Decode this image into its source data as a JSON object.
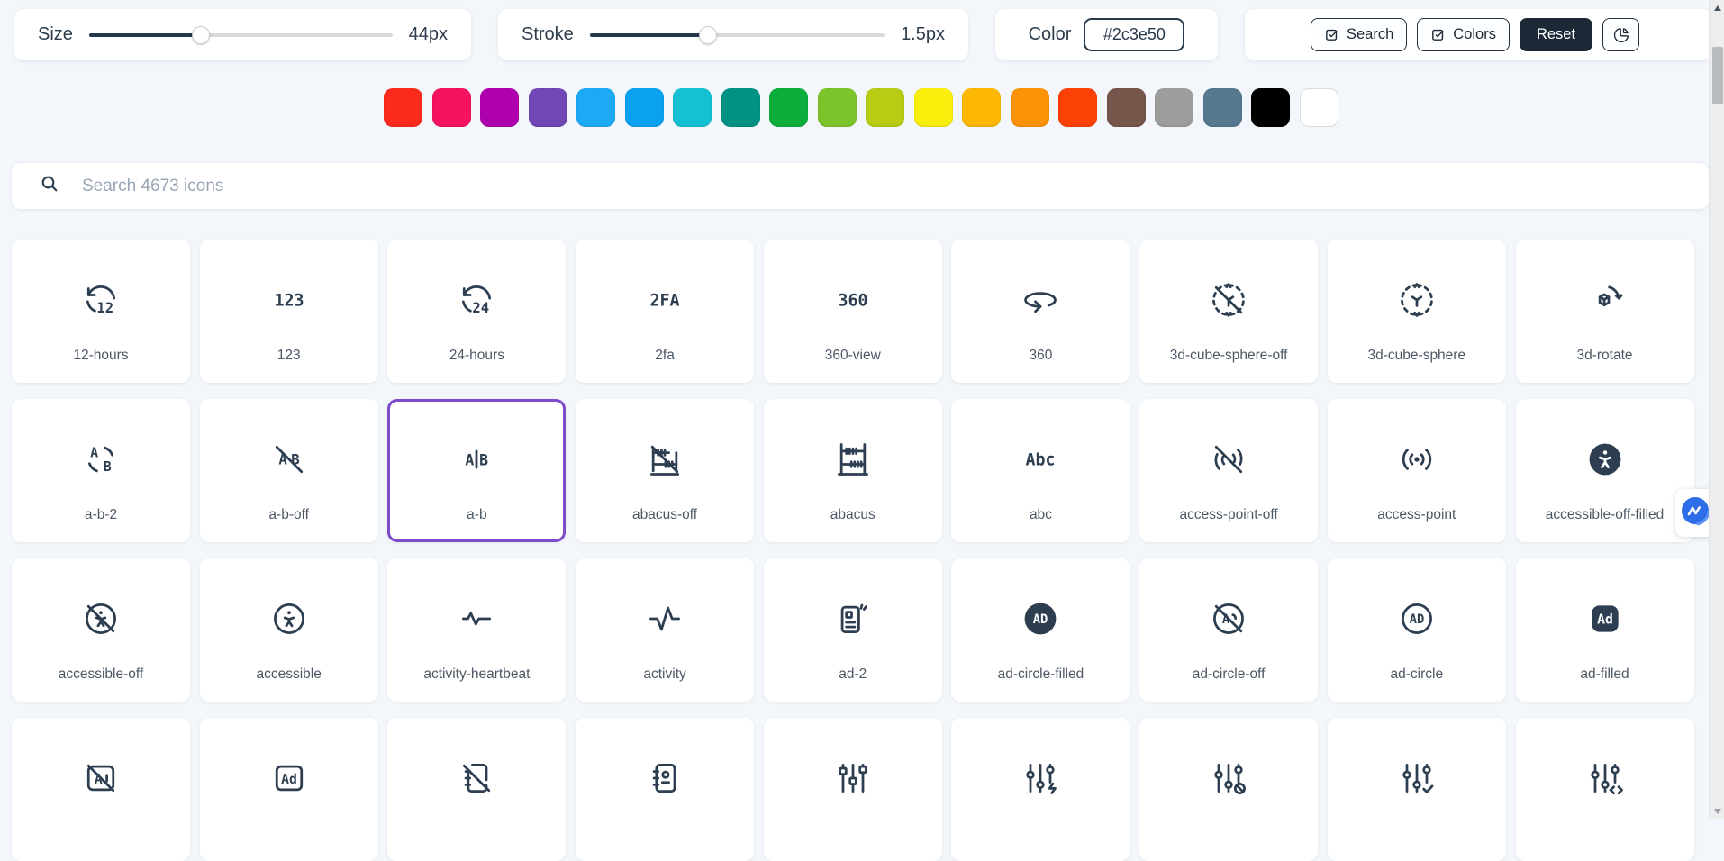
{
  "app": {
    "background": "#f3f7fb",
    "accent": "#7e4bcb",
    "icon_color": "#2c3e50"
  },
  "controls": {
    "size": {
      "label": "Size",
      "value": "44px",
      "percent": 37
    },
    "stroke": {
      "label": "Stroke",
      "value": "1.5px",
      "percent": 40
    },
    "color": {
      "label": "Color",
      "value": "#2c3e50"
    },
    "search_button": "Search",
    "colors_button": "Colors",
    "reset_button": "Reset"
  },
  "palette": [
    "#fa2b1d",
    "#f5125f",
    "#ae00af",
    "#7146b5",
    "#1caaf5",
    "#0aa1f1",
    "#13c1d3",
    "#019284",
    "#0cae3c",
    "#7cc32c",
    "#b8cc14",
    "#f9ee0c",
    "#fcb805",
    "#fb9207",
    "#fb4105",
    "#76564b",
    "#9d9d9d",
    "#56798f",
    "#010101",
    "#ffffff"
  ],
  "search": {
    "placeholder": "Search 4673 icons"
  },
  "grid": {
    "cells": [
      {
        "icon": "12-hours",
        "label": "12-hours"
      },
      {
        "icon": "123",
        "label": "123"
      },
      {
        "icon": "24-hours",
        "label": "24-hours"
      },
      {
        "icon": "2fa",
        "label": "2fa"
      },
      {
        "icon": "360-view",
        "label": "360-view"
      },
      {
        "icon": "360",
        "label": "360"
      },
      {
        "icon": "3d-cube-sphere-off",
        "label": "3d-cube-sphere-off"
      },
      {
        "icon": "3d-cube-sphere",
        "label": "3d-cube-sphere"
      },
      {
        "icon": "3d-rotate",
        "label": "3d-rotate"
      },
      {
        "icon": "a-b-2",
        "label": "a-b-2"
      },
      {
        "icon": "a-b-off",
        "label": "a-b-off"
      },
      {
        "icon": "a-b",
        "label": "a-b",
        "selected": true
      },
      {
        "icon": "abacus-off",
        "label": "abacus-off"
      },
      {
        "icon": "abacus",
        "label": "abacus"
      },
      {
        "icon": "abc",
        "label": "abc"
      },
      {
        "icon": "access-point-off",
        "label": "access-point-off"
      },
      {
        "icon": "access-point",
        "label": "access-point"
      },
      {
        "icon": "accessible-off-filled",
        "label": "accessible-off-filled"
      },
      {
        "icon": "accessible-off",
        "label": "accessible-off"
      },
      {
        "icon": "accessible",
        "label": "accessible"
      },
      {
        "icon": "activity-heartbeat",
        "label": "activity-heartbeat"
      },
      {
        "icon": "activity",
        "label": "activity"
      },
      {
        "icon": "ad-2",
        "label": "ad-2"
      },
      {
        "icon": "ad-circle-filled",
        "label": "ad-circle-filled"
      },
      {
        "icon": "ad-circle-off",
        "label": "ad-circle-off"
      },
      {
        "icon": "ad-circle",
        "label": "ad-circle"
      },
      {
        "icon": "ad-filled",
        "label": "ad-filled"
      },
      {
        "icon": "ad-off",
        "label": ""
      },
      {
        "icon": "ad",
        "label": ""
      },
      {
        "icon": "address-book-off",
        "label": ""
      },
      {
        "icon": "address-book",
        "label": ""
      },
      {
        "icon": "adjustments-alt",
        "label": ""
      },
      {
        "icon": "adjustments-bolt",
        "label": ""
      },
      {
        "icon": "adjustments-cancel",
        "label": ""
      },
      {
        "icon": "adjustments-check",
        "label": ""
      },
      {
        "icon": "adjustments-code",
        "label": ""
      }
    ]
  }
}
